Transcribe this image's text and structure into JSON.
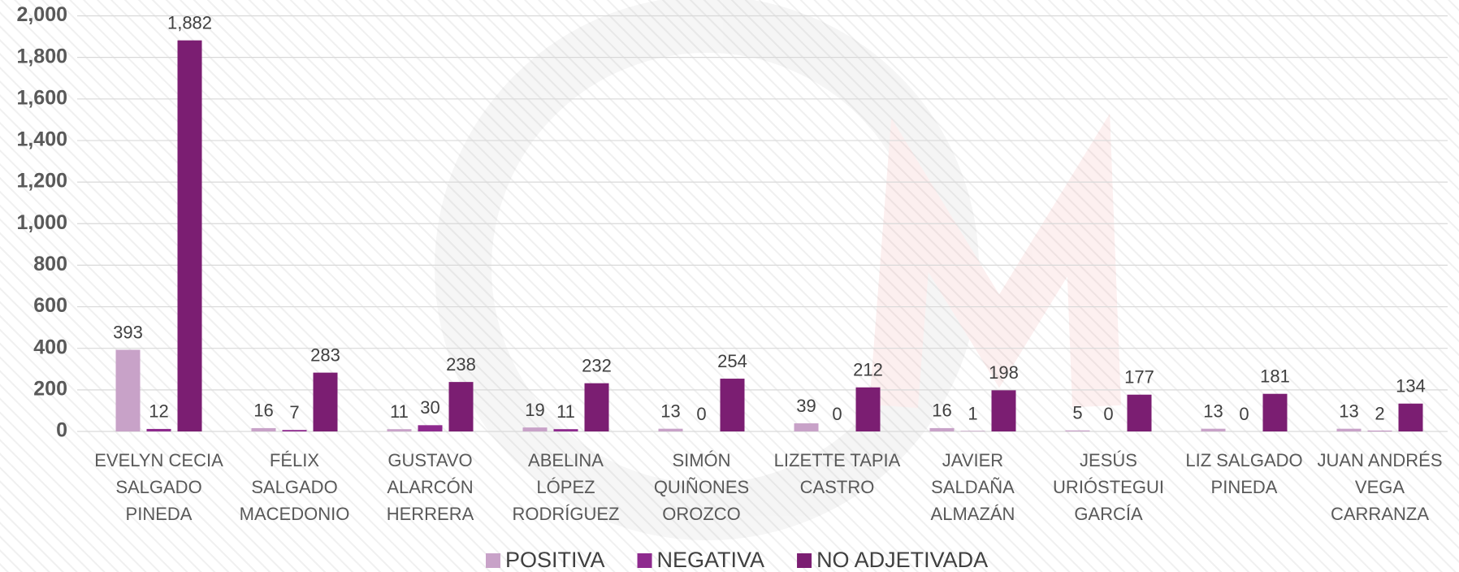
{
  "chart_data": {
    "type": "bar",
    "categories": [
      "EVELYN CECIA SALGADO PINEDA",
      "FÉLIX SALGADO MACEDONIO",
      "GUSTAVO ALARCÓN HERRERA",
      "ABELINA LÓPEZ RODRÍGUEZ",
      "SIMÓN QUIÑONES OROZCO",
      "LIZETTE TAPIA CASTRO",
      "JAVIER SALDAÑA ALMAZÁN",
      "JESÚS URIÓSTEGUI GARCÍA",
      "LIZ SALGADO PINEDA",
      "JUAN ANDRÉS VEGA CARRANZA"
    ],
    "series": [
      {
        "name": "POSITIVA",
        "color": "#c8a2c8",
        "values": [
          393,
          16,
          11,
          19,
          13,
          39,
          16,
          5,
          13,
          13
        ]
      },
      {
        "name": "NEGATIVA",
        "color": "#8e2a8e",
        "values": [
          12,
          7,
          30,
          11,
          0,
          0,
          1,
          0,
          0,
          2
        ]
      },
      {
        "name": "NO ADJETIVADA",
        "color": "#7b1e72",
        "values": [
          1882,
          283,
          238,
          232,
          254,
          212,
          198,
          177,
          181,
          134
        ],
        "value_labels": [
          "1,882",
          "283",
          "238",
          "232",
          "254",
          "212",
          "198",
          "177",
          "181",
          "134"
        ]
      }
    ],
    "ylim": [
      0,
      2000
    ],
    "yticks": [
      0,
      200,
      400,
      600,
      800,
      {
        "value": 1000,
        "label": "1,000"
      },
      {
        "value": 1200,
        "label": "1,200"
      },
      {
        "value": 1400,
        "label": "1,400"
      },
      {
        "value": 1600,
        "label": "1,600"
      },
      {
        "value": 1800,
        "label": "1,800"
      },
      {
        "value": 2000,
        "label": "2,000"
      }
    ],
    "grid": true,
    "legend": "bottom"
  }
}
